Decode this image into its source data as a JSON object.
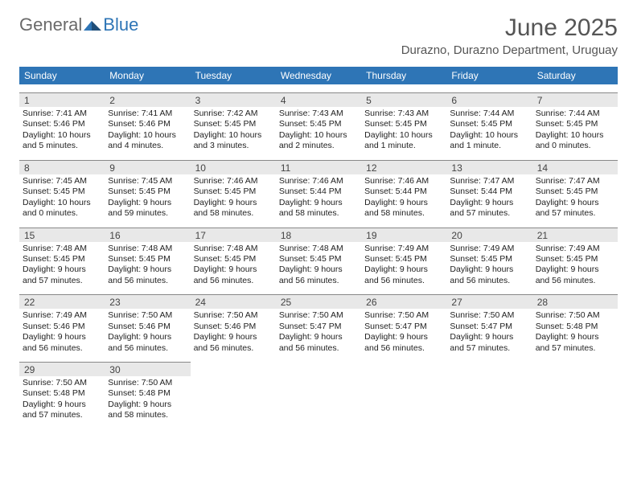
{
  "brand": {
    "general": "General",
    "blue": "Blue"
  },
  "title": "June 2025",
  "location": "Durazno, Durazno Department, Uruguay",
  "colors": {
    "header_bg": "#2e75b6",
    "daynum_bg": "#e8e8e8",
    "daynum_border": "#888888",
    "text": "#333333",
    "title_text": "#555555"
  },
  "typography": {
    "title_fontsize": 30,
    "location_fontsize": 15,
    "dow_fontsize": 12,
    "daynum_fontsize": 12,
    "body_fontsize": 10.5
  },
  "days_of_week": [
    "Sunday",
    "Monday",
    "Tuesday",
    "Wednesday",
    "Thursday",
    "Friday",
    "Saturday"
  ],
  "weeks": [
    [
      {
        "n": "1",
        "sunrise": "Sunrise: 7:41 AM",
        "sunset": "Sunset: 5:46 PM",
        "daylight": "Daylight: 10 hours and 5 minutes."
      },
      {
        "n": "2",
        "sunrise": "Sunrise: 7:41 AM",
        "sunset": "Sunset: 5:46 PM",
        "daylight": "Daylight: 10 hours and 4 minutes."
      },
      {
        "n": "3",
        "sunrise": "Sunrise: 7:42 AM",
        "sunset": "Sunset: 5:45 PM",
        "daylight": "Daylight: 10 hours and 3 minutes."
      },
      {
        "n": "4",
        "sunrise": "Sunrise: 7:43 AM",
        "sunset": "Sunset: 5:45 PM",
        "daylight": "Daylight: 10 hours and 2 minutes."
      },
      {
        "n": "5",
        "sunrise": "Sunrise: 7:43 AM",
        "sunset": "Sunset: 5:45 PM",
        "daylight": "Daylight: 10 hours and 1 minute."
      },
      {
        "n": "6",
        "sunrise": "Sunrise: 7:44 AM",
        "sunset": "Sunset: 5:45 PM",
        "daylight": "Daylight: 10 hours and 1 minute."
      },
      {
        "n": "7",
        "sunrise": "Sunrise: 7:44 AM",
        "sunset": "Sunset: 5:45 PM",
        "daylight": "Daylight: 10 hours and 0 minutes."
      }
    ],
    [
      {
        "n": "8",
        "sunrise": "Sunrise: 7:45 AM",
        "sunset": "Sunset: 5:45 PM",
        "daylight": "Daylight: 10 hours and 0 minutes."
      },
      {
        "n": "9",
        "sunrise": "Sunrise: 7:45 AM",
        "sunset": "Sunset: 5:45 PM",
        "daylight": "Daylight: 9 hours and 59 minutes."
      },
      {
        "n": "10",
        "sunrise": "Sunrise: 7:46 AM",
        "sunset": "Sunset: 5:45 PM",
        "daylight": "Daylight: 9 hours and 58 minutes."
      },
      {
        "n": "11",
        "sunrise": "Sunrise: 7:46 AM",
        "sunset": "Sunset: 5:44 PM",
        "daylight": "Daylight: 9 hours and 58 minutes."
      },
      {
        "n": "12",
        "sunrise": "Sunrise: 7:46 AM",
        "sunset": "Sunset: 5:44 PM",
        "daylight": "Daylight: 9 hours and 58 minutes."
      },
      {
        "n": "13",
        "sunrise": "Sunrise: 7:47 AM",
        "sunset": "Sunset: 5:44 PM",
        "daylight": "Daylight: 9 hours and 57 minutes."
      },
      {
        "n": "14",
        "sunrise": "Sunrise: 7:47 AM",
        "sunset": "Sunset: 5:45 PM",
        "daylight": "Daylight: 9 hours and 57 minutes."
      }
    ],
    [
      {
        "n": "15",
        "sunrise": "Sunrise: 7:48 AM",
        "sunset": "Sunset: 5:45 PM",
        "daylight": "Daylight: 9 hours and 57 minutes."
      },
      {
        "n": "16",
        "sunrise": "Sunrise: 7:48 AM",
        "sunset": "Sunset: 5:45 PM",
        "daylight": "Daylight: 9 hours and 56 minutes."
      },
      {
        "n": "17",
        "sunrise": "Sunrise: 7:48 AM",
        "sunset": "Sunset: 5:45 PM",
        "daylight": "Daylight: 9 hours and 56 minutes."
      },
      {
        "n": "18",
        "sunrise": "Sunrise: 7:48 AM",
        "sunset": "Sunset: 5:45 PM",
        "daylight": "Daylight: 9 hours and 56 minutes."
      },
      {
        "n": "19",
        "sunrise": "Sunrise: 7:49 AM",
        "sunset": "Sunset: 5:45 PM",
        "daylight": "Daylight: 9 hours and 56 minutes."
      },
      {
        "n": "20",
        "sunrise": "Sunrise: 7:49 AM",
        "sunset": "Sunset: 5:45 PM",
        "daylight": "Daylight: 9 hours and 56 minutes."
      },
      {
        "n": "21",
        "sunrise": "Sunrise: 7:49 AM",
        "sunset": "Sunset: 5:45 PM",
        "daylight": "Daylight: 9 hours and 56 minutes."
      }
    ],
    [
      {
        "n": "22",
        "sunrise": "Sunrise: 7:49 AM",
        "sunset": "Sunset: 5:46 PM",
        "daylight": "Daylight: 9 hours and 56 minutes."
      },
      {
        "n": "23",
        "sunrise": "Sunrise: 7:50 AM",
        "sunset": "Sunset: 5:46 PM",
        "daylight": "Daylight: 9 hours and 56 minutes."
      },
      {
        "n": "24",
        "sunrise": "Sunrise: 7:50 AM",
        "sunset": "Sunset: 5:46 PM",
        "daylight": "Daylight: 9 hours and 56 minutes."
      },
      {
        "n": "25",
        "sunrise": "Sunrise: 7:50 AM",
        "sunset": "Sunset: 5:47 PM",
        "daylight": "Daylight: 9 hours and 56 minutes."
      },
      {
        "n": "26",
        "sunrise": "Sunrise: 7:50 AM",
        "sunset": "Sunset: 5:47 PM",
        "daylight": "Daylight: 9 hours and 56 minutes."
      },
      {
        "n": "27",
        "sunrise": "Sunrise: 7:50 AM",
        "sunset": "Sunset: 5:47 PM",
        "daylight": "Daylight: 9 hours and 57 minutes."
      },
      {
        "n": "28",
        "sunrise": "Sunrise: 7:50 AM",
        "sunset": "Sunset: 5:48 PM",
        "daylight": "Daylight: 9 hours and 57 minutes."
      }
    ],
    [
      {
        "n": "29",
        "sunrise": "Sunrise: 7:50 AM",
        "sunset": "Sunset: 5:48 PM",
        "daylight": "Daylight: 9 hours and 57 minutes."
      },
      {
        "n": "30",
        "sunrise": "Sunrise: 7:50 AM",
        "sunset": "Sunset: 5:48 PM",
        "daylight": "Daylight: 9 hours and 58 minutes."
      },
      {
        "empty": true
      },
      {
        "empty": true
      },
      {
        "empty": true
      },
      {
        "empty": true
      },
      {
        "empty": true
      }
    ]
  ]
}
